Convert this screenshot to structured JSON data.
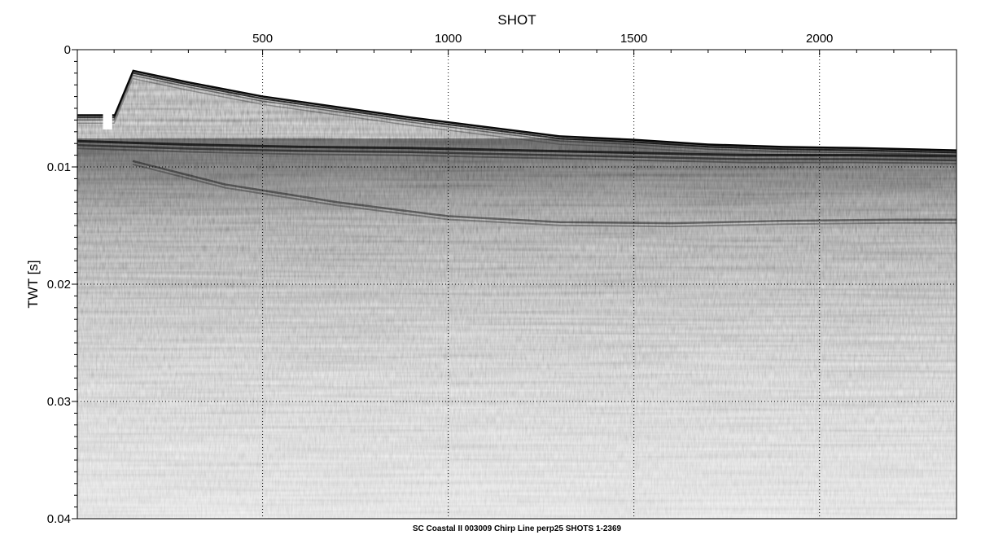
{
  "chart_data": {
    "type": "heatmap",
    "subtype": "seismic-section",
    "title": "SC Coastal II 003009 Chirp Line perp25 SHOTS 1-2369",
    "xlabel": "SHOT",
    "ylabel": "TWT [s]",
    "xlim": [
      1,
      2369
    ],
    "ylim": [
      0,
      0.04
    ],
    "y_inverted": true,
    "x_axis_position": "top",
    "x_ticks": [
      500,
      1000,
      1500,
      2000
    ],
    "x_tick_labels": [
      "500",
      "1000",
      "1500",
      "2000"
    ],
    "y_ticks": [
      0,
      0.01,
      0.02,
      0.03,
      0.04
    ],
    "y_tick_labels": [
      "0",
      "0.01",
      "0.02",
      "0.03",
      "0.04"
    ],
    "grid": true,
    "grid_style": "dotted",
    "colormap": "grayscale",
    "seafloor_reflector": {
      "shot": [
        1,
        100,
        150,
        300,
        500,
        700,
        900,
        1100,
        1300,
        1500,
        1700,
        1900,
        2100,
        2369
      ],
      "twt": [
        0.0055,
        0.0055,
        0.0017,
        0.0027,
        0.0039,
        0.0048,
        0.0057,
        0.0065,
        0.0073,
        0.0076,
        0.008,
        0.0082,
        0.0083,
        0.0085
      ]
    },
    "subbottom_reflector_1": {
      "shot": [
        1,
        300,
        600,
        900,
        1200,
        1500,
        1800,
        2100,
        2369
      ],
      "twt": [
        0.008,
        0.0083,
        0.0085,
        0.0086,
        0.0088,
        0.009,
        0.0092,
        0.0092,
        0.0093
      ]
    },
    "subbottom_reflector_2": {
      "shot": [
        150,
        400,
        700,
        1000,
        1300,
        1600,
        1900,
        2200,
        2369
      ],
      "twt": [
        0.0095,
        0.0115,
        0.013,
        0.0142,
        0.0147,
        0.0148,
        0.0146,
        0.0145,
        0.0145
      ]
    },
    "data_gap_shots": [
      70,
      95
    ]
  }
}
